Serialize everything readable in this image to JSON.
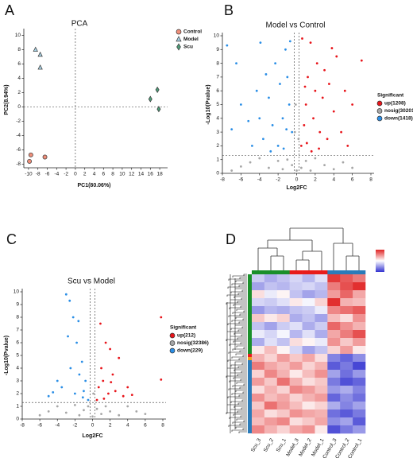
{
  "chart_data": [
    {
      "type": "scatter",
      "panel": "A",
      "title": "PCA",
      "x_label": "PC1(80.06%)",
      "y_label": "PC2(8.94%)",
      "xlim": [
        -11,
        19
      ],
      "ylim": [
        -8.5,
        10.5
      ],
      "xticks": [
        -10,
        -8,
        -6,
        -4,
        -2,
        0,
        2,
        4,
        6,
        8,
        10,
        12,
        14,
        16,
        18
      ],
      "yticks": [
        -8,
        -6,
        -4,
        -2,
        0,
        2,
        4,
        6,
        8,
        10
      ],
      "reference_lines": {
        "x": [
          0
        ],
        "y": [
          0
        ]
      },
      "series": [
        {
          "name": "Control",
          "color": "#ef8f7a",
          "marker": "circle",
          "x": [
            -9.5,
            -9.8,
            -6.5
          ],
          "values": [
            -6.7,
            -7.6,
            -7.0
          ]
        },
        {
          "name": "Model",
          "color": "#a9d3e6",
          "marker": "triangle",
          "x": [
            -8.5,
            -7.5,
            -7.5
          ],
          "values": [
            8.0,
            7.3,
            5.5
          ]
        },
        {
          "name": "Scu",
          "color": "#4f9e7a",
          "marker": "diamond",
          "x": [
            16.0,
            17.5,
            17.8
          ],
          "values": [
            1.1,
            2.4,
            -0.3
          ]
        }
      ]
    },
    {
      "type": "scatter",
      "panel": "B",
      "title": "Model vs Control",
      "x_label": "Log2FC",
      "y_label": "-Log10(Pvalue)",
      "xlim": [
        -8,
        8
      ],
      "ylim": [
        0,
        10
      ],
      "xticks": [
        -8,
        -6,
        -4,
        -2,
        0,
        2,
        4,
        6,
        8
      ],
      "yticks": [
        0,
        1,
        2,
        3,
        4,
        5,
        6,
        7,
        8,
        9,
        10
      ],
      "reference_lines": {
        "x": [
          -0.263,
          0.263
        ],
        "y": [
          1.3
        ]
      },
      "legend_title": "Significant",
      "series": [
        {
          "name": "up(1208)",
          "color": "#e8141a",
          "marker": "circle",
          "x": [
            0.5,
            0.8,
            1,
            1.2,
            1.5,
            1.8,
            2,
            2.2,
            2.5,
            2.8,
            3,
            3.3,
            3.5,
            4,
            4.3,
            4.8,
            5.2,
            5.5,
            6,
            7,
            0.6,
            1.1,
            1.6,
            2.4,
            3.8,
            0.9
          ],
          "values": [
            2,
            3.5,
            5,
            7,
            9.5,
            4,
            6,
            8,
            3,
            5.5,
            7.5,
            2.5,
            6.5,
            4.5,
            8.5,
            3,
            6,
            2,
            5,
            8.2,
            9.8,
            2.2,
            1.6,
            1.8,
            9.1,
            6.3
          ]
        },
        {
          "name": "nosig(30201)",
          "color": "#a6a6a6",
          "marker": "circle",
          "x": [
            -7,
            -6,
            -5,
            -4,
            -3,
            -2,
            -1.5,
            -1,
            -0.5,
            0,
            0.2,
            -0.2,
            0.5,
            1,
            1.5,
            2,
            3,
            4,
            5,
            6,
            -0.1
          ],
          "values": [
            0.2,
            0.5,
            0.8,
            1.1,
            0.4,
            0.9,
            0.3,
            1.0,
            0.6,
            0.2,
            2.5,
            3,
            0.4,
            0.9,
            0.2,
            1.1,
            0.6,
            0.3,
            0.8,
            0.4,
            5
          ]
        },
        {
          "name": "down(1418)",
          "color": "#2a8ee6",
          "marker": "circle",
          "x": [
            -0.5,
            -0.8,
            -1,
            -1.2,
            -1.5,
            -1.8,
            -2,
            -2.3,
            -2.6,
            -3,
            -3.3,
            -3.6,
            -4,
            -4.3,
            -4.8,
            -5.2,
            -6,
            -7,
            -7.5,
            -0.7,
            -1.4,
            -2.8,
            -6.5,
            -3.9,
            -1.1
          ],
          "values": [
            3,
            5,
            7,
            9,
            4,
            6.5,
            2,
            8,
            3.5,
            5.5,
            7.2,
            2.5,
            4,
            6,
            2,
            3.8,
            5,
            3.2,
            9.3,
            9.6,
            1.8,
            1.6,
            8,
            9.5,
            3.2
          ]
        }
      ]
    },
    {
      "type": "scatter",
      "panel": "C",
      "title": "Scu vs Model",
      "x_label": "Log2FC",
      "y_label": "-Log10(Pvalue)",
      "xlim": [
        -8,
        8
      ],
      "ylim": [
        0,
        10
      ],
      "xticks": [
        -8,
        -6,
        -4,
        -2,
        0,
        2,
        4,
        6,
        8
      ],
      "yticks": [
        0,
        1,
        2,
        3,
        4,
        5,
        6,
        7,
        8,
        9,
        10
      ],
      "reference_lines": {
        "x": [
          -0.263,
          0.263
        ],
        "y": [
          1.3
        ]
      },
      "legend_title": "Significant",
      "series": [
        {
          "name": "up(212)",
          "color": "#e8141a",
          "marker": "circle",
          "x": [
            0.5,
            0.7,
            1,
            1.2,
            1.5,
            1.8,
            2,
            2.3,
            2.6,
            3,
            3.5,
            4,
            4.5,
            7.8,
            7.8,
            0.9,
            1.3,
            2.1
          ],
          "values": [
            1.5,
            2.5,
            4,
            3,
            6,
            2,
            5.5,
            3.5,
            2.2,
            4.8,
            1.8,
            2.5,
            1.9,
            8,
            3.1,
            7.5,
            1.6,
            2.9
          ]
        },
        {
          "name": "nosig(32386)",
          "color": "#a6a6a6",
          "marker": "circle",
          "x": [
            -6,
            -5,
            -4,
            -3,
            -2,
            -1.5,
            -1,
            -0.5,
            0,
            0.1,
            0.5,
            1,
            1.5,
            2,
            3,
            4,
            5,
            6
          ],
          "values": [
            0.3,
            0.6,
            1,
            0.5,
            1.1,
            0.3,
            0.7,
            1,
            0.2,
            2,
            0.8,
            0.4,
            1,
            0.6,
            0.3,
            1,
            0.6,
            0.4
          ]
        },
        {
          "name": "down(229)",
          "color": "#2a8ee6",
          "marker": "circle",
          "x": [
            -0.5,
            -0.8,
            -1,
            -1.2,
            -1.5,
            -1.8,
            -2,
            -2.2,
            -2.5,
            -2.8,
            -3,
            -3.5,
            -4,
            -4.5,
            -5,
            -2.6,
            -1.6,
            -1.1
          ],
          "values": [
            1.5,
            3,
            2.2,
            4.5,
            3.5,
            6,
            2,
            8,
            4,
            6.5,
            9.8,
            2.5,
            3,
            2.1,
            1.8,
            9.3,
            7.7,
            1.7
          ]
        }
      ]
    },
    {
      "type": "heatmap",
      "panel": "D",
      "columns": [
        "Scu_3",
        "Scu_2",
        "Scu_1",
        "Model_3",
        "Model_2",
        "Model_1",
        "Control_3",
        "Control_2",
        "Control_1"
      ],
      "column_colors": [
        "#1a8f2a",
        "#1a8f2a",
        "#1a8f2a",
        "#e81c1c",
        "#e81c1c",
        "#e81c1c",
        "#2b7bb9",
        "#2b7bb9",
        "#2b7bb9"
      ],
      "zlim": [
        -2,
        2
      ],
      "colors": [
        "#3232d0",
        "#ffffff",
        "#e02424"
      ],
      "values": [
        [
          -0.5,
          -0.8,
          -0.6,
          -0.4,
          -0.7,
          -0.3,
          1.8,
          1.5,
          1.2
        ],
        [
          -0.9,
          -0.6,
          -0.7,
          -0.5,
          -0.4,
          -0.6,
          1.2,
          1.6,
          1.9
        ],
        [
          0.3,
          -0.2,
          0.1,
          -0.6,
          -0.9,
          -0.7,
          0.9,
          1.4,
          0.8
        ],
        [
          -0.4,
          -0.5,
          -0.3,
          0.2,
          -0.1,
          0.4,
          1.9,
          0.7,
          0.6
        ],
        [
          -1.0,
          -0.7,
          -0.8,
          -0.6,
          -0.5,
          -0.2,
          1.1,
          1.3,
          1.5
        ],
        [
          0.5,
          0.2,
          0.4,
          -0.8,
          -0.6,
          -0.9,
          0.6,
          0.3,
          1.0
        ],
        [
          -0.6,
          -0.9,
          -0.5,
          -0.3,
          -0.8,
          -0.5,
          1.4,
          1.0,
          0.7
        ],
        [
          -0.2,
          -0.4,
          -0.1,
          -0.7,
          -0.3,
          -0.8,
          0.8,
          1.2,
          1.6
        ],
        [
          -0.8,
          -0.3,
          -0.6,
          0.3,
          0.1,
          -0.2,
          1.0,
          0.5,
          0.9
        ],
        [
          0.2,
          0.6,
          0.1,
          -0.4,
          -0.9,
          -0.6,
          0.4,
          0.9,
          0.2
        ],
        [
          0.7,
          0.4,
          0.9,
          0.5,
          0.8,
          0.3,
          -1.2,
          -1.5,
          -1.1
        ],
        [
          1.2,
          0.8,
          0.6,
          0.9,
          0.4,
          0.7,
          -1.6,
          -1.3,
          -1.8
        ],
        [
          0.4,
          1.1,
          0.7,
          0.2,
          0.6,
          1.0,
          -0.9,
          -1.4,
          -1.0
        ],
        [
          0.9,
          0.5,
          1.3,
          0.7,
          0.3,
          0.5,
          -1.3,
          -1.7,
          -1.5
        ],
        [
          0.3,
          0.7,
          0.4,
          1.1,
          0.9,
          0.6,
          -1.0,
          -0.8,
          -1.2
        ],
        [
          1.0,
          0.6,
          0.8,
          0.4,
          0.7,
          0.9,
          -1.5,
          -1.1,
          -1.4
        ],
        [
          0.5,
          1.3,
          0.9,
          0.6,
          0.2,
          0.4,
          -0.8,
          -1.2,
          -0.9
        ],
        [
          0.8,
          0.3,
          0.5,
          1.0,
          0.8,
          0.7,
          -1.4,
          -1.6,
          -1.3
        ],
        [
          0.6,
          0.9,
          1.1,
          0.3,
          0.5,
          0.8,
          -1.1,
          -0.9,
          -1.6
        ],
        [
          1.1,
          0.7,
          0.4,
          0.8,
          1.0,
          0.2,
          -1.7,
          -1.3,
          -1.0
        ]
      ]
    }
  ]
}
